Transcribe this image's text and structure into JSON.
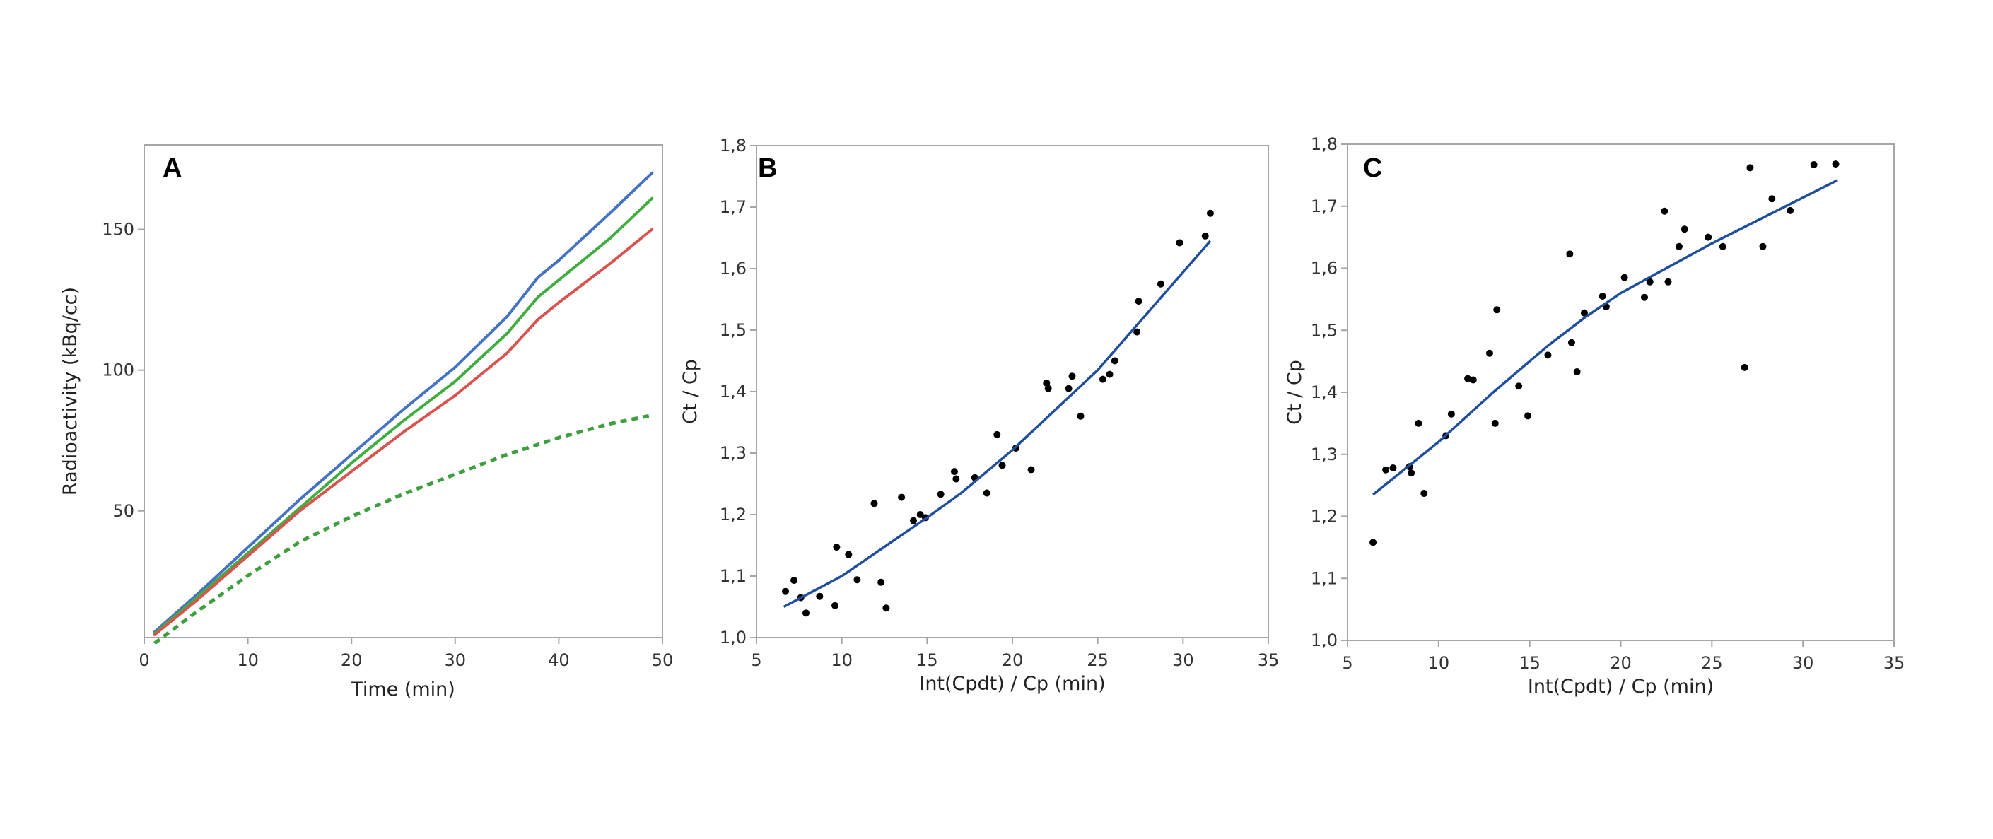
{
  "colors": {
    "frame": "#a6a6a6",
    "fit_line": "#1f4e9e",
    "points": "#000000",
    "blue": "#4472c4",
    "green": "#3fae3f",
    "red": "#d9534f",
    "green_dashed": "#3f9f3f"
  },
  "chart_data": [
    {
      "id": "A",
      "panel_label": "A",
      "type": "line",
      "xlabel": "Time (min)",
      "ylabel": "Radioactivity (kBq/cc)",
      "xlim": [
        0,
        50
      ],
      "ylim": [
        5,
        180
      ],
      "xticks": [
        0,
        10,
        20,
        30,
        40,
        50
      ],
      "yticks": [
        50,
        100,
        150
      ],
      "grid": false,
      "series": [
        {
          "color_key": "blue",
          "style": "solid",
          "points": [
            [
              1,
              7
            ],
            [
              5,
              20
            ],
            [
              10,
              37
            ],
            [
              15,
              54
            ],
            [
              20,
              70
            ],
            [
              25,
              86
            ],
            [
              30,
              101
            ],
            [
              35,
              119
            ],
            [
              38,
              133
            ],
            [
              40,
              139
            ],
            [
              45,
              156
            ],
            [
              49,
              170
            ]
          ]
        },
        {
          "color_key": "green",
          "style": "solid",
          "points": [
            [
              1,
              6.5
            ],
            [
              5,
              19
            ],
            [
              10,
              35
            ],
            [
              15,
              51
            ],
            [
              20,
              67
            ],
            [
              25,
              82
            ],
            [
              30,
              96
            ],
            [
              35,
              113
            ],
            [
              38,
              126
            ],
            [
              40,
              132
            ],
            [
              45,
              147
            ],
            [
              49,
              161
            ]
          ]
        },
        {
          "color_key": "red",
          "style": "solid",
          "points": [
            [
              1,
              6
            ],
            [
              5,
              18
            ],
            [
              10,
              34
            ],
            [
              15,
              50
            ],
            [
              20,
              64
            ],
            [
              25,
              78
            ],
            [
              30,
              91
            ],
            [
              35,
              106
            ],
            [
              38,
              118
            ],
            [
              40,
              124
            ],
            [
              45,
              138
            ],
            [
              49,
              150
            ]
          ]
        },
        {
          "color_key": "green_dashed",
          "style": "dashed",
          "points": [
            [
              1,
              3
            ],
            [
              5,
              14
            ],
            [
              10,
              27
            ],
            [
              15,
              39
            ],
            [
              20,
              48
            ],
            [
              25,
              56
            ],
            [
              30,
              63
            ],
            [
              35,
              70
            ],
            [
              40,
              76
            ],
            [
              45,
              81
            ],
            [
              49,
              84
            ]
          ]
        }
      ]
    },
    {
      "id": "B",
      "panel_label": "B",
      "type": "scatter",
      "xlabel": "Int(Cpdt) / Cp (min)",
      "ylabel": "Ct / Cp",
      "xlim": [
        5,
        35
      ],
      "ylim": [
        1.0,
        1.8
      ],
      "xticks": [
        "5",
        "10",
        "15",
        "20",
        "25",
        "30",
        "35"
      ],
      "yticks": [
        "1,0",
        "1,1",
        "1,2",
        "1,3",
        "1,4",
        "1,5",
        "1,6",
        "1,7",
        "1,8"
      ],
      "grid": false,
      "points": [
        [
          6.7,
          1.075
        ],
        [
          7.2,
          1.093
        ],
        [
          7.6,
          1.065
        ],
        [
          7.9,
          1.04
        ],
        [
          8.7,
          1.067
        ],
        [
          9.6,
          1.052
        ],
        [
          9.7,
          1.147
        ],
        [
          10.4,
          1.135
        ],
        [
          10.9,
          1.094
        ],
        [
          11.9,
          1.218
        ],
        [
          12.3,
          1.09
        ],
        [
          12.6,
          1.048
        ],
        [
          13.5,
          1.228
        ],
        [
          14.2,
          1.19
        ],
        [
          14.6,
          1.2
        ],
        [
          14.9,
          1.195
        ],
        [
          15.8,
          1.233
        ],
        [
          16.6,
          1.27
        ],
        [
          16.7,
          1.258
        ],
        [
          17.8,
          1.26
        ],
        [
          18.5,
          1.235
        ],
        [
          19.1,
          1.33
        ],
        [
          19.4,
          1.28
        ],
        [
          20.2,
          1.308
        ],
        [
          21.1,
          1.273
        ],
        [
          22.0,
          1.414
        ],
        [
          22.1,
          1.405
        ],
        [
          23.3,
          1.405
        ],
        [
          23.5,
          1.425
        ],
        [
          24.0,
          1.36
        ],
        [
          25.3,
          1.42
        ],
        [
          25.7,
          1.428
        ],
        [
          26.0,
          1.45
        ],
        [
          27.3,
          1.497
        ],
        [
          27.4,
          1.547
        ],
        [
          28.7,
          1.575
        ],
        [
          29.8,
          1.642
        ],
        [
          31.3,
          1.653
        ],
        [
          31.6,
          1.69
        ]
      ],
      "fit": [
        [
          6.6,
          1.05
        ],
        [
          10,
          1.1
        ],
        [
          15,
          1.195
        ],
        [
          17,
          1.235
        ],
        [
          20,
          1.305
        ],
        [
          25,
          1.435
        ],
        [
          31.6,
          1.645
        ]
      ]
    },
    {
      "id": "C",
      "panel_label": "C",
      "type": "scatter",
      "xlabel": "Int(Cpdt) / Cp (min)",
      "ylabel": "Ct / Cp",
      "xlim": [
        5,
        35
      ],
      "ylim": [
        1.0,
        1.8
      ],
      "xticks": [
        "5",
        "10",
        "15",
        "20",
        "25",
        "30",
        "35"
      ],
      "yticks": [
        "1,0",
        "1,1",
        "1,2",
        "1,3",
        "1,4",
        "1,5",
        "1,6",
        "1,7",
        "1,8"
      ],
      "grid": false,
      "points": [
        [
          6.4,
          1.158
        ],
        [
          7.1,
          1.275
        ],
        [
          7.5,
          1.278
        ],
        [
          8.4,
          1.28
        ],
        [
          8.5,
          1.27
        ],
        [
          8.9,
          1.35
        ],
        [
          9.2,
          1.237
        ],
        [
          10.4,
          1.33
        ],
        [
          10.7,
          1.365
        ],
        [
          11.6,
          1.422
        ],
        [
          11.9,
          1.42
        ],
        [
          12.8,
          1.463
        ],
        [
          13.1,
          1.35
        ],
        [
          13.2,
          1.533
        ],
        [
          14.4,
          1.41
        ],
        [
          14.9,
          1.362
        ],
        [
          16.0,
          1.46
        ],
        [
          17.2,
          1.623
        ],
        [
          17.3,
          1.48
        ],
        [
          17.6,
          1.433
        ],
        [
          18.0,
          1.528
        ],
        [
          19.0,
          1.555
        ],
        [
          19.2,
          1.538
        ],
        [
          20.2,
          1.585
        ],
        [
          21.3,
          1.553
        ],
        [
          21.6,
          1.578
        ],
        [
          22.4,
          1.692
        ],
        [
          22.6,
          1.578
        ],
        [
          23.2,
          1.635
        ],
        [
          23.5,
          1.663
        ],
        [
          24.8,
          1.65
        ],
        [
          25.6,
          1.635
        ],
        [
          26.8,
          1.44
        ],
        [
          27.1,
          1.762
        ],
        [
          27.8,
          1.635
        ],
        [
          28.3,
          1.712
        ],
        [
          29.3,
          1.693
        ],
        [
          30.6,
          1.767
        ],
        [
          31.8,
          1.768
        ]
      ],
      "fit": [
        [
          6.4,
          1.235
        ],
        [
          10,
          1.32
        ],
        [
          13,
          1.4
        ],
        [
          16,
          1.475
        ],
        [
          18,
          1.52
        ],
        [
          20,
          1.56
        ],
        [
          25,
          1.64
        ],
        [
          31.9,
          1.742
        ]
      ]
    }
  ]
}
